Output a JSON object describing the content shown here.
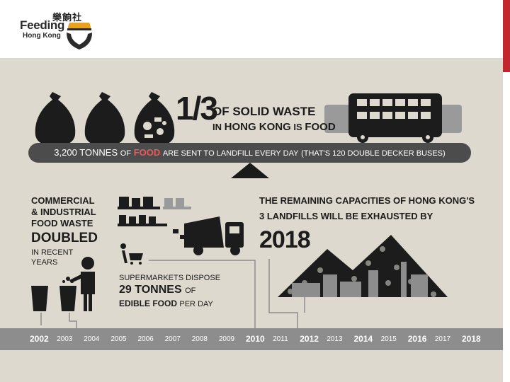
{
  "logo": {
    "name": "Feeding",
    "sub": "Hong Kong",
    "chinese": "樂餉社"
  },
  "colors": {
    "accent": "#c1272d",
    "panel": "#ddd9cf",
    "dark": "#1c1c1c",
    "banner": "#4c4c4c",
    "banner_highlight": "#e65a5a",
    "timeline": "#8d8d8d"
  },
  "headline": {
    "fraction": "1/3",
    "line1": "OF SOLID WASTE",
    "line2_a": "IN",
    "line2_b": "HONG KONG",
    "line2_c": "IS",
    "line2_d": "FOOD"
  },
  "banner": {
    "amount": "3,200 TONNES",
    "of": "OF",
    "food": "FOOD",
    "rest": "ARE SENT TO LANDFILL EVERY DAY",
    "note": "(THAT'S 120 DOUBLE DECKER BUSES)"
  },
  "commercial": {
    "line1": "COMMERCIAL",
    "line2": "& INDUSTRIAL",
    "line3": "FOOD WASTE",
    "doubled": "DOUBLED",
    "line4": "IN RECENT",
    "line5": "YEARS"
  },
  "supermarket": {
    "line1": "SUPERMARKETS DISPOSE",
    "amount": "29 TONNES",
    "of": "OF",
    "edible": "EDIBLE FOOD",
    "per_day": "PER DAY"
  },
  "landfill": {
    "line1": "THE REMAINING CAPACITIES OF HONG KONG'S",
    "line2": "3 LANDFILLS WILL BE EXHAUSTED BY",
    "year": "2018"
  },
  "timeline": {
    "years": [
      "2002",
      "2003",
      "2004",
      "2005",
      "2006",
      "2007",
      "2008",
      "2009",
      "2010",
      "2011",
      "2012",
      "2013",
      "2014",
      "2015",
      "2016",
      "2017",
      "2018"
    ],
    "emphasized": [
      "2002",
      "2010",
      "2012",
      "2014",
      "2016",
      "2018"
    ]
  }
}
